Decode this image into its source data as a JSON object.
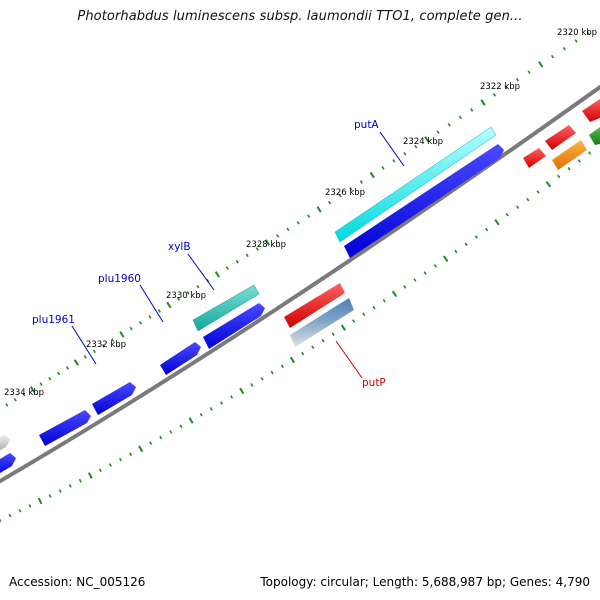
{
  "title": "Photorhabdus luminescens subsp. laumondii TTO1, complete gen...",
  "footer": {
    "accession": "Accession: NC_005126",
    "summary": "Topology: circular; Length: 5,688,987 bp; Genes: 4,790"
  },
  "ticks": [
    "2320 kbp",
    "2322 kbp",
    "2324 kbp",
    "2326 kbp",
    "2328 kbp",
    "2330 kbp",
    "2332 kbp",
    "2334 kbp"
  ],
  "gene_labels": [
    {
      "text": "putA",
      "color": "#0000cc"
    },
    {
      "text": "xylB",
      "color": "#0000cc"
    },
    {
      "text": "plu1960",
      "color": "#0000cc"
    },
    {
      "text": "plu1961",
      "color": "#0000cc"
    },
    {
      "text": "putP",
      "color": "#cc0000"
    }
  ],
  "colors": {
    "backbone": "#7a7a7a",
    "tick_dots": "#1f8a1f",
    "cds_forward": "#0000ee",
    "putA": "#00e5ee",
    "xylB": "#19b8b0",
    "putP": "#ee0000",
    "putP_homolog": "#5f8fbf",
    "orange_gene": "#ff8c00",
    "green_gene": "#228b22",
    "grey_gene": "#bdbdbd"
  }
}
